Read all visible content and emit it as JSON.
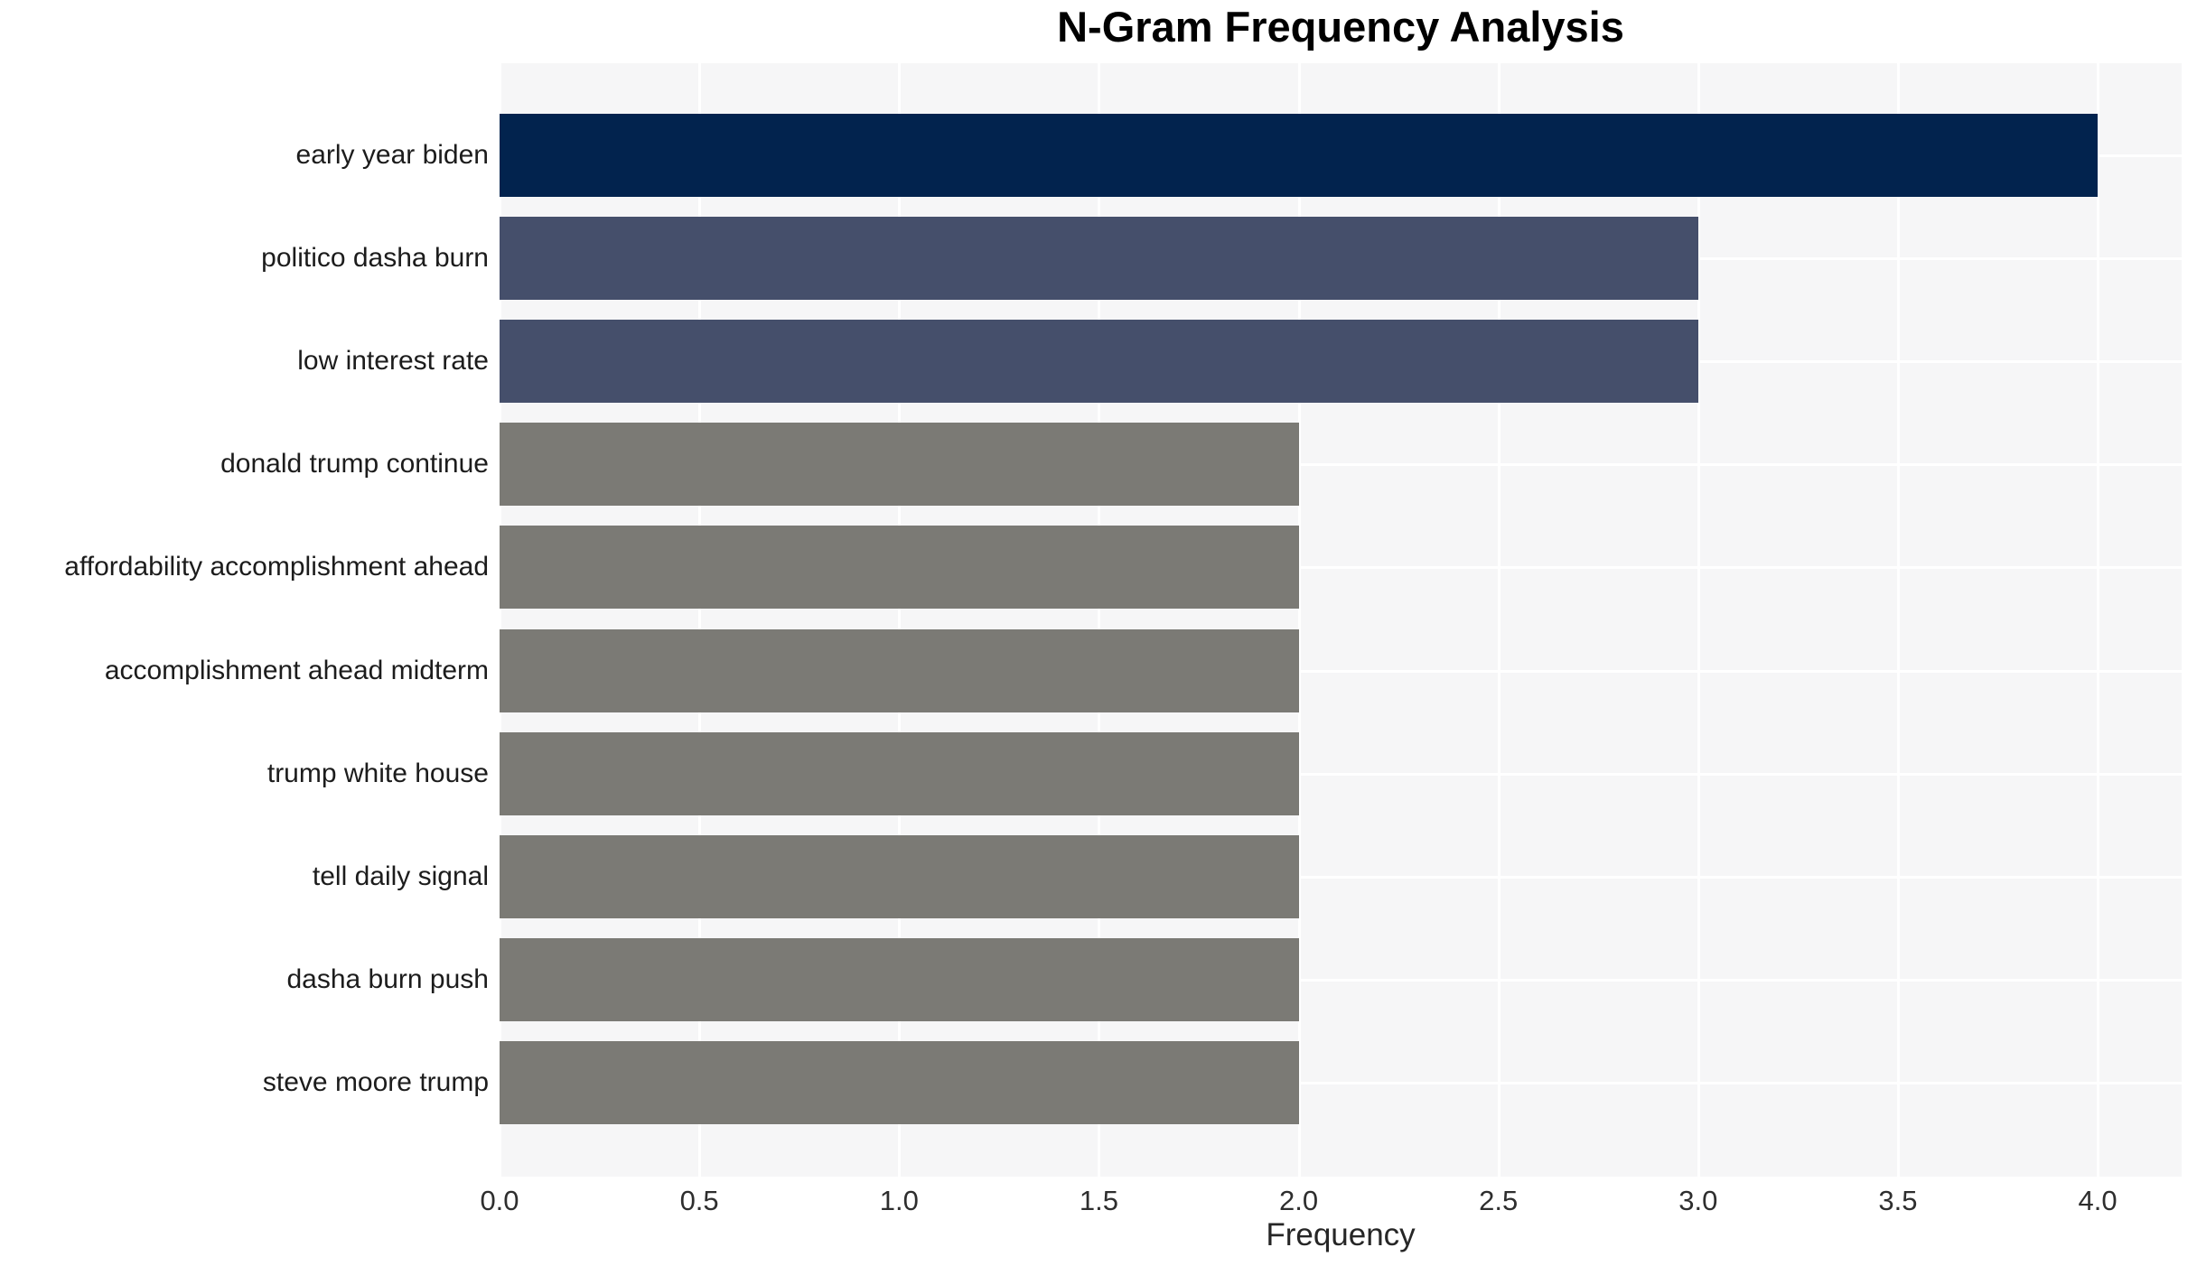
{
  "chart_data": {
    "type": "bar",
    "orientation": "horizontal",
    "title": "N-Gram Frequency Analysis",
    "xlabel": "Frequency",
    "ylabel": "",
    "categories": [
      "early year biden",
      "politico dasha burn",
      "low interest rate",
      "donald trump continue",
      "affordability accomplishment ahead",
      "accomplishment ahead midterm",
      "trump white house",
      "tell daily signal",
      "dasha burn push",
      "steve moore trump"
    ],
    "values": [
      4,
      3,
      3,
      2,
      2,
      2,
      2,
      2,
      2,
      2
    ],
    "bar_colors": [
      "#02234e",
      "#454f6b",
      "#454f6b",
      "#7b7a75",
      "#7b7a75",
      "#7b7a75",
      "#7b7a75",
      "#7b7a75",
      "#7b7a75",
      "#7b7a75"
    ],
    "xlim": [
      0,
      4.21
    ],
    "xticks": [
      0.0,
      0.5,
      1.0,
      1.5,
      2.0,
      2.5,
      3.0,
      3.5,
      4.0
    ],
    "xtick_labels": [
      "0.0",
      "0.5",
      "1.0",
      "1.5",
      "2.0",
      "2.5",
      "3.0",
      "3.5",
      "4.0"
    ],
    "grid": true,
    "legend": false,
    "colors": {
      "plot_background": "#f6f6f7",
      "gridline": "#ffffff",
      "page_background": "#ffffff",
      "title_text": "#000000",
      "label_text": "#1c1c1c",
      "tick_text": "#2e2e2e"
    }
  }
}
